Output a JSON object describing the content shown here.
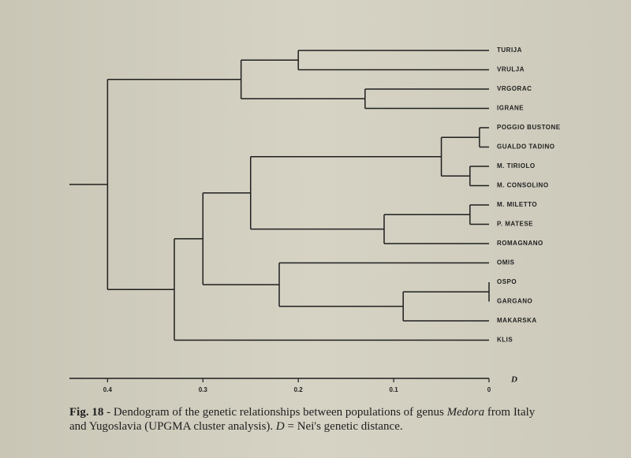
{
  "chart_data": {
    "type": "dendrogram",
    "leaves": [
      "TURIJA",
      "VRULJA",
      "VRGORAC",
      "IGRANE",
      "POGGIO BUSTONE",
      "GUALDO TADINO",
      "M. TIRIOLO",
      "M. CONSOLINO",
      "M. MILETTO",
      "P. MATESE",
      "ROMAGNANO",
      "OMIS",
      "OSPO",
      "GARGANO",
      "MAKARSKA",
      "KLIS"
    ],
    "merges": [
      {
        "children": [
          0,
          1
        ],
        "height": 0.2
      },
      {
        "children": [
          2,
          3
        ],
        "height": 0.13
      },
      {
        "children": [
          16,
          17
        ],
        "height": 0.26
      },
      {
        "children": [
          4,
          5
        ],
        "height": 0.01
      },
      {
        "children": [
          6,
          7
        ],
        "height": 0.02
      },
      {
        "children": [
          19,
          20
        ],
        "height": 0.05
      },
      {
        "children": [
          8,
          9
        ],
        "height": 0.02
      },
      {
        "children": [
          22,
          10
        ],
        "height": 0.11
      },
      {
        "children": [
          21,
          23
        ],
        "height": 0.25
      },
      {
        "children": [
          12,
          13
        ],
        "height": 0
      },
      {
        "children": [
          25,
          14
        ],
        "height": 0.09
      },
      {
        "children": [
          11,
          26
        ],
        "height": 0.22
      },
      {
        "children": [
          24,
          27
        ],
        "height": 0.3
      },
      {
        "children": [
          28,
          15
        ],
        "height": 0.33
      },
      {
        "children": [
          18,
          29
        ],
        "height": 0.4
      }
    ],
    "xlabel": "D",
    "xlim": [
      0.44,
      0
    ],
    "xticks": [
      0.4,
      0.3,
      0.2,
      0.1,
      0
    ],
    "color": "#1e1e1e",
    "caption": [
      "Fig. 18",
      " - Dendogram of the genetic relationships between populations of genus ",
      "Medora",
      " from Italy and Yugoslavia (UPGMA cluster analysis). ",
      "D",
      " = Nei's genetic distance."
    ]
  }
}
